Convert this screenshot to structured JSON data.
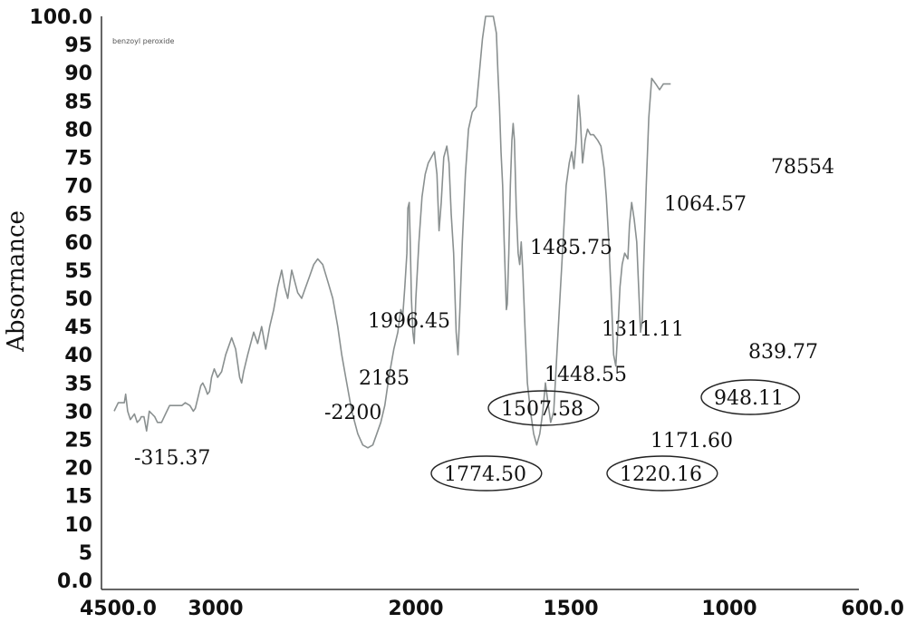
{
  "chart_data": {
    "type": "line",
    "title": "",
    "legend": [
      "benzoyl peroxide"
    ],
    "xlabel": "",
    "ylabel": "Absornance",
    "xlim": [
      4500,
      600
    ],
    "ylim": [
      0,
      100
    ],
    "x_ticks": [
      {
        "label": "4500.0",
        "value": 4500
      },
      {
        "label": "3000",
        "value": 3000
      },
      {
        "label": "2000",
        "value": 2000
      },
      {
        "label": "1500",
        "value": 1500
      },
      {
        "label": "1000",
        "value": 1000
      },
      {
        "label": "600.0",
        "value": 600
      }
    ],
    "y_ticks": [
      {
        "label": "100.0",
        "value": 100
      },
      {
        "label": "95",
        "value": 95
      },
      {
        "label": "90",
        "value": 90
      },
      {
        "label": "85",
        "value": 85
      },
      {
        "label": "80",
        "value": 80
      },
      {
        "label": "75",
        "value": 75
      },
      {
        "label": "70",
        "value": 70
      },
      {
        "label": "65",
        "value": 65
      },
      {
        "label": "60",
        "value": 60
      },
      {
        "label": "55",
        "value": 55
      },
      {
        "label": "50",
        "value": 50
      },
      {
        "label": "45",
        "value": 45
      },
      {
        "label": "40",
        "value": 40
      },
      {
        "label": "35",
        "value": 35
      },
      {
        "label": "30",
        "value": 30
      },
      {
        "label": "25",
        "value": 25
      },
      {
        "label": "20",
        "value": 20
      },
      {
        "label": "15",
        "value": 15
      },
      {
        "label": "10",
        "value": 10
      },
      {
        "label": "5",
        "value": 5
      },
      {
        "label": "0.0",
        "value": 0
      }
    ],
    "series": [
      {
        "name": "benzoyl peroxide",
        "color": "#8a9090",
        "points": [
          [
            4500,
            30
          ],
          [
            4440,
            31.5
          ],
          [
            4350,
            31.5
          ],
          [
            4330,
            33
          ],
          [
            4300,
            30
          ],
          [
            4260,
            28.5
          ],
          [
            4200,
            29.5
          ],
          [
            4160,
            28
          ],
          [
            4120,
            28.5
          ],
          [
            4100,
            29
          ],
          [
            4060,
            29
          ],
          [
            4020,
            26.5
          ],
          [
            3980,
            30
          ],
          [
            3940,
            29.5
          ],
          [
            3900,
            29
          ],
          [
            3860,
            28
          ],
          [
            3800,
            28
          ],
          [
            3740,
            29.5
          ],
          [
            3680,
            31
          ],
          [
            3600,
            31
          ],
          [
            3500,
            31
          ],
          [
            3450,
            31.5
          ],
          [
            3380,
            31
          ],
          [
            3330,
            30
          ],
          [
            3300,
            30.5
          ],
          [
            3260,
            32.5
          ],
          [
            3220,
            34.5
          ],
          [
            3190,
            35
          ],
          [
            3150,
            34
          ],
          [
            3120,
            33
          ],
          [
            3090,
            33.5
          ],
          [
            3060,
            36
          ],
          [
            3020,
            37.5
          ],
          [
            2990,
            36
          ],
          [
            2970,
            37
          ],
          [
            2950,
            40
          ],
          [
            2920,
            43
          ],
          [
            2900,
            41
          ],
          [
            2880,
            36
          ],
          [
            2870,
            35
          ],
          [
            2860,
            37
          ],
          [
            2840,
            40
          ],
          [
            2810,
            44
          ],
          [
            2790,
            42
          ],
          [
            2770,
            45
          ],
          [
            2750,
            41
          ],
          [
            2730,
            45
          ],
          [
            2710,
            48
          ],
          [
            2690,
            52
          ],
          [
            2670,
            55
          ],
          [
            2655,
            52
          ],
          [
            2640,
            50
          ],
          [
            2620,
            55
          ],
          [
            2605,
            53
          ],
          [
            2590,
            51
          ],
          [
            2570,
            50
          ],
          [
            2550,
            52
          ],
          [
            2530,
            54
          ],
          [
            2510,
            56
          ],
          [
            2490,
            57
          ],
          [
            2465,
            56
          ],
          [
            2440,
            53
          ],
          [
            2415,
            50
          ],
          [
            2390,
            45
          ],
          [
            2370,
            40
          ],
          [
            2350,
            36
          ],
          [
            2320,
            30
          ],
          [
            2290,
            26
          ],
          [
            2265,
            24
          ],
          [
            2240,
            23.5
          ],
          [
            2215,
            24
          ],
          [
            2195,
            26
          ],
          [
            2175,
            28
          ],
          [
            2155,
            31
          ],
          [
            2135,
            36
          ],
          [
            2110,
            41
          ],
          [
            2090,
            44
          ],
          [
            2075,
            48
          ],
          [
            2065,
            47
          ],
          [
            2055,
            52
          ],
          [
            2045,
            58
          ],
          [
            2040,
            66
          ],
          [
            2033,
            67
          ],
          [
            2028,
            60
          ],
          [
            2022,
            50
          ],
          [
            2015,
            44
          ],
          [
            2008,
            42
          ],
          [
            2000,
            50
          ],
          [
            1990,
            60
          ],
          [
            1980,
            68
          ],
          [
            1970,
            72
          ],
          [
            1960,
            74
          ],
          [
            1950,
            75
          ],
          [
            1940,
            76
          ],
          [
            1932,
            72
          ],
          [
            1925,
            62
          ],
          [
            1918,
            67
          ],
          [
            1910,
            75
          ],
          [
            1900,
            77
          ],
          [
            1893,
            74
          ],
          [
            1886,
            65
          ],
          [
            1878,
            58
          ],
          [
            1870,
            44
          ],
          [
            1864,
            40
          ],
          [
            1858,
            48
          ],
          [
            1850,
            60
          ],
          [
            1840,
            72
          ],
          [
            1830,
            80
          ],
          [
            1818,
            83
          ],
          [
            1805,
            84
          ],
          [
            1795,
            90
          ],
          [
            1785,
            96
          ],
          [
            1775,
            100
          ],
          [
            1750,
            100
          ],
          [
            1740,
            97
          ],
          [
            1735,
            90
          ],
          [
            1730,
            84
          ],
          [
            1725,
            76
          ],
          [
            1720,
            70
          ],
          [
            1715,
            60
          ],
          [
            1712,
            55
          ],
          [
            1708,
            48
          ],
          [
            1705,
            49
          ],
          [
            1700,
            58
          ],
          [
            1695,
            70
          ],
          [
            1690,
            78
          ],
          [
            1686,
            81
          ],
          [
            1682,
            78
          ],
          [
            1676,
            66
          ],
          [
            1670,
            58
          ],
          [
            1665,
            56
          ],
          [
            1660,
            60
          ],
          [
            1655,
            55
          ],
          [
            1648,
            45
          ],
          [
            1640,
            35
          ],
          [
            1630,
            30
          ],
          [
            1620,
            26
          ],
          [
            1610,
            24
          ],
          [
            1600,
            26
          ],
          [
            1590,
            30
          ],
          [
            1582,
            35
          ],
          [
            1575,
            32
          ],
          [
            1565,
            28
          ],
          [
            1555,
            30
          ],
          [
            1545,
            40
          ],
          [
            1535,
            50
          ],
          [
            1525,
            60
          ],
          [
            1515,
            70
          ],
          [
            1505,
            74
          ],
          [
            1497,
            76
          ],
          [
            1490,
            73
          ],
          [
            1483,
            78
          ],
          [
            1476,
            86
          ],
          [
            1470,
            82
          ],
          [
            1463,
            74
          ],
          [
            1455,
            78
          ],
          [
            1447,
            80
          ],
          [
            1438,
            79
          ],
          [
            1428,
            79
          ],
          [
            1415,
            78
          ],
          [
            1405,
            77
          ],
          [
            1395,
            73
          ],
          [
            1388,
            68
          ],
          [
            1380,
            60
          ],
          [
            1372,
            50
          ],
          [
            1365,
            40
          ],
          [
            1358,
            38
          ],
          [
            1350,
            46
          ],
          [
            1345,
            52
          ],
          [
            1338,
            56
          ],
          [
            1330,
            58
          ],
          [
            1320,
            57
          ],
          [
            1315,
            63
          ],
          [
            1308,
            67
          ],
          [
            1300,
            64
          ],
          [
            1292,
            60
          ],
          [
            1286,
            52
          ],
          [
            1280,
            44
          ],
          [
            1275,
            46
          ],
          [
            1270,
            56
          ],
          [
            1262,
            70
          ],
          [
            1254,
            82
          ],
          [
            1245,
            89
          ],
          [
            1232,
            88
          ],
          [
            1220,
            87
          ],
          [
            1208,
            88
          ],
          [
            1200,
            88
          ],
          [
            1185,
            88
          ]
        ]
      }
    ],
    "annotations": [
      {
        "text": "-315.37",
        "circled": false
      },
      {
        "text": "-2200",
        "circled": false
      },
      {
        "text": "2185",
        "circled": false
      },
      {
        "text": "1996.45",
        "circled": false
      },
      {
        "text": "1774.50",
        "circled": true
      },
      {
        "text": "1507.58",
        "circled": true
      },
      {
        "text": "1485.75",
        "circled": false
      },
      {
        "text": "1448.55",
        "circled": false
      },
      {
        "text": "1311.11",
        "circled": false
      },
      {
        "text": "1220.16",
        "circled": true
      },
      {
        "text": "1171.60",
        "circled": false
      },
      {
        "text": "1064.57",
        "circled": false
      },
      {
        "text": "948.11",
        "circled": true
      },
      {
        "text": "839.77",
        "circled": false
      },
      {
        "text": "78554",
        "circled": false
      }
    ]
  }
}
